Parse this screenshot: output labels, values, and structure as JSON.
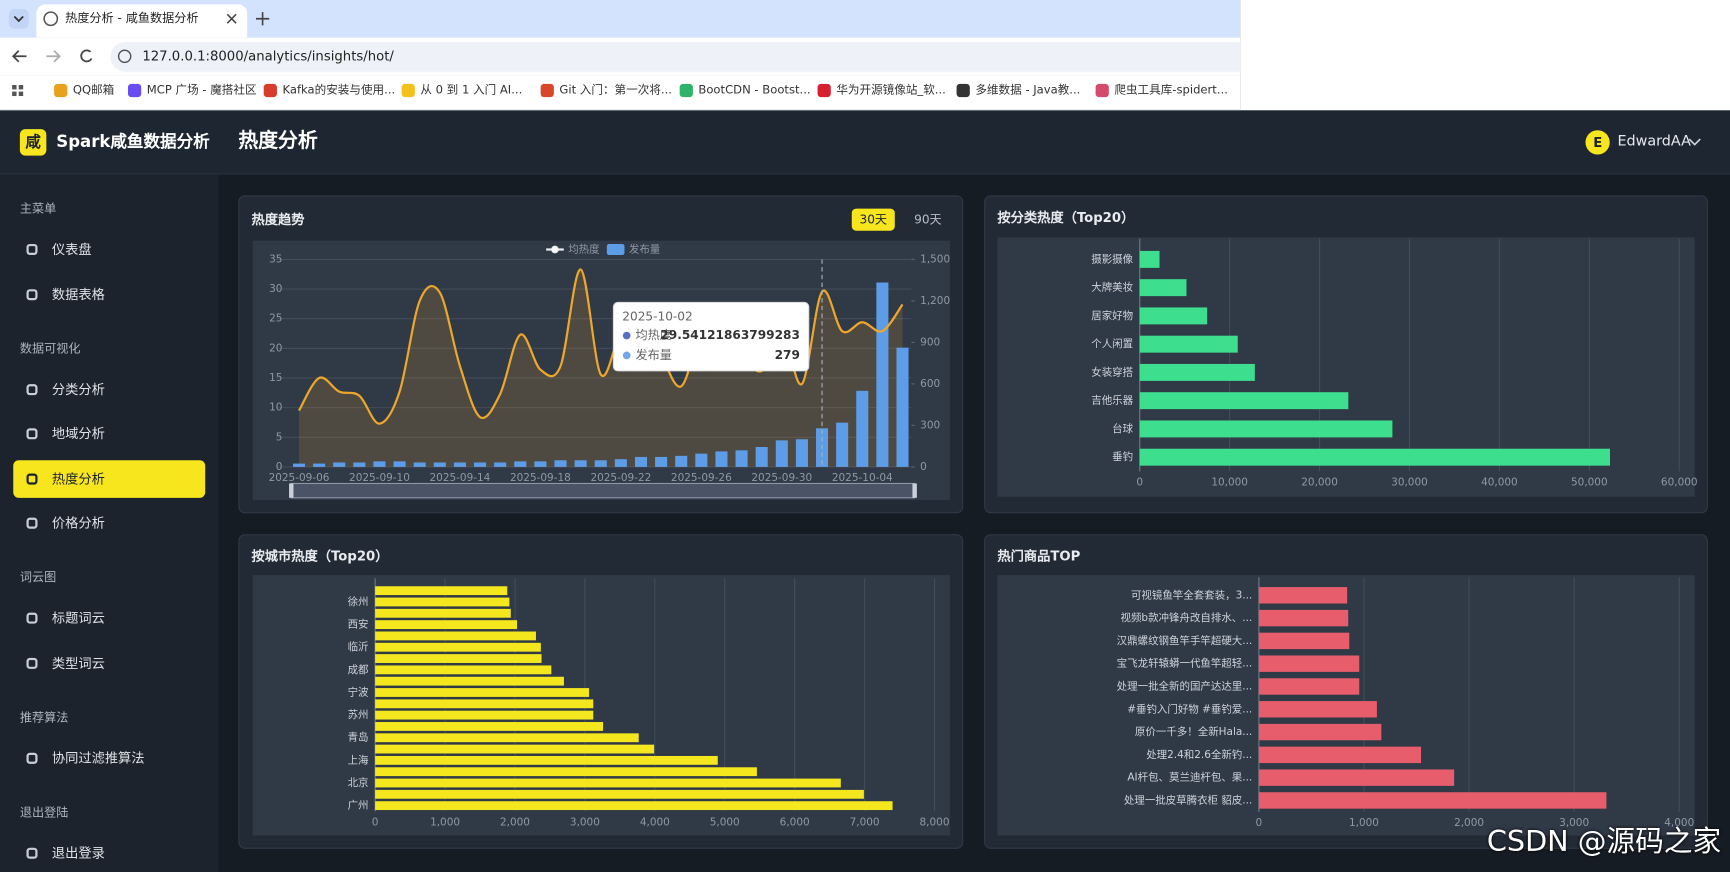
{
  "browser": {
    "tab_title": "热度分析 - 咸鱼数据分析",
    "url": "127.0.0.1:8000/analytics/insights/hot/",
    "bookmarks": [
      "QQ邮箱",
      "MCP 广场 - 魔搭社区",
      "Kafka的安装与使用...",
      "从 0 到 1 入门 AI...",
      "Git 入门：第一次将...",
      "BootCDN - Bootst...",
      "华为开源镜像站_软...",
      "多维数据 - Java教...",
      "爬虫工具库-spidert..."
    ]
  },
  "sidebar": {
    "brand_icon": "咸",
    "brand": "Spark咸鱼数据分析",
    "groups": [
      {
        "title": "主菜单",
        "items": [
          "仪表盘",
          "数据表格"
        ]
      },
      {
        "title": "数据可视化",
        "items": [
          "分类分析",
          "地域分析",
          "热度分析",
          "价格分析"
        ]
      },
      {
        "title": "词云图",
        "items": [
          "标题词云",
          "类型词云"
        ]
      },
      {
        "title": "推荐算法",
        "items": [
          "协同过滤推算法"
        ]
      },
      {
        "title": "退出登陆",
        "items": [
          "退出登录"
        ]
      }
    ]
  },
  "header": {
    "title": "热度分析",
    "user_initial": "E",
    "user": "EdwardAA"
  },
  "chart_data": [
    {
      "type": "combo",
      "title": "热度趋势",
      "range_options": [
        "30天",
        "90天"
      ],
      "categories": [
        "2025-09-06",
        null,
        null,
        null,
        "2025-09-10",
        null,
        null,
        null,
        "2025-09-14",
        null,
        null,
        null,
        "2025-09-18",
        null,
        null,
        null,
        "2025-09-22",
        null,
        null,
        null,
        "2025-09-26",
        null,
        null,
        null,
        "2025-09-30",
        null,
        null,
        null,
        "2025-10-04",
        null,
        null
      ],
      "series": [
        {
          "name": "均热度",
          "type": "line",
          "color": "#eea72a",
          "values": [
            9.5,
            15,
            12.7,
            12,
            7.3,
            12.7,
            28,
            29.4,
            17,
            8.4,
            12.3,
            22.3,
            16.4,
            17,
            33.3,
            15.6,
            22.9,
            26.6,
            19,
            13.6,
            23,
            24.8,
            19.2,
            16.2,
            22.9,
            14,
            29.54121863799283,
            22.9,
            24.4,
            22.9,
            27.4
          ]
        },
        {
          "name": "发布量",
          "type": "bar",
          "axis": "y2",
          "color": "#5d9ce6",
          "values": [
            24,
            24,
            32,
            32,
            40,
            40,
            32,
            32,
            32,
            32,
            32,
            40,
            40,
            48,
            48,
            48,
            56,
            72,
            72,
            80,
            96,
            112,
            120,
            144,
            192,
            200,
            279,
            320,
            550,
            1333,
            862
          ]
        }
      ],
      "ylim": [
        0,
        35
      ],
      "yticks": [
        0,
        5,
        10,
        15,
        20,
        25,
        30,
        35
      ],
      "y2lim": [
        0,
        1500
      ],
      "y2ticks": [
        0,
        300,
        600,
        900,
        {
          "value": 1200,
          "label": "1,200"
        },
        {
          "value": 1500,
          "label": "1,500"
        }
      ],
      "grid": true,
      "tooltip": {
        "title": "2025-10-02"
      }
    },
    {
      "type": "hbar",
      "title": "按分类热度（Top20）",
      "categories": [
        "垂钓",
        "台球",
        "吉他乐器",
        "女装穿搭",
        "个人闲置",
        "居家好物",
        "大牌美妆",
        "摄影摄像"
      ],
      "values": [
        52300,
        28100,
        23200,
        12800,
        10900,
        7500,
        5200,
        2200
      ],
      "color": "#3ddf8e",
      "xlim": [
        0,
        60000
      ],
      "xticks": [
        0,
        {
          "value": 10000,
          "label": "10,000"
        },
        {
          "value": 20000,
          "label": "20,000"
        },
        {
          "value": 30000,
          "label": "30,000"
        },
        {
          "value": 40000,
          "label": "40,000"
        },
        {
          "value": 50000,
          "label": "50,000"
        },
        {
          "value": 60000,
          "label": "60,000"
        }
      ],
      "grid": true
    },
    {
      "type": "hbar",
      "title": "按城市热度（Top20）",
      "categories": [
        "广州",
        null,
        "北京",
        null,
        "上海",
        null,
        "青岛",
        null,
        "苏州",
        null,
        "宁波",
        null,
        "成都",
        null,
        "临沂",
        null,
        "西安",
        null,
        "徐州",
        null
      ],
      "values": [
        7400,
        6990,
        6660,
        5460,
        4900,
        3990,
        3770,
        3260,
        3120,
        3120,
        3060,
        2700,
        2520,
        2380,
        2370,
        2300,
        2030,
        1940,
        1920,
        1890
      ],
      "color": "#f5e71e",
      "xlim": [
        0,
        8000
      ],
      "xticks": [
        0,
        {
          "value": 1000,
          "label": "1,000"
        },
        {
          "value": 2000,
          "label": "2,000"
        },
        {
          "value": 3000,
          "label": "3,000"
        },
        {
          "value": 4000,
          "label": "4,000"
        },
        {
          "value": 5000,
          "label": "5,000"
        },
        {
          "value": 6000,
          "label": "6,000"
        },
        {
          "value": 7000,
          "label": "7,000"
        },
        {
          "value": 8000,
          "label": "8,000"
        }
      ],
      "grid": true
    },
    {
      "type": "hbar",
      "title": "热门商品TOP",
      "categories": [
        "处理一批皮草腾衣柜 貂皮...",
        "AI杆包、莫兰迪杆包、果...",
        "处理2.4和2.6全新钓...",
        "原价一千多！全新Hala...",
        "#垂钓入门好物 #垂钓爱...",
        "处理一批全新的国产达达里...",
        "宝飞龙轩辕蟒一代鱼竿超轻...",
        "汉鼎螺纹钢鱼竿手竿超硬大...",
        "视频b款冲锋舟改自排水、...",
        "可视镜鱼竿全套套装，3..."
      ],
      "values": [
        3307,
        1858,
        1543,
        1165,
        1123,
        955,
        955,
        860,
        850,
        840
      ],
      "color": "#e85d6c",
      "xlim": [
        0,
        4000
      ],
      "xticks": [
        0,
        {
          "value": 1000,
          "label": "1,000"
        },
        {
          "value": 2000,
          "label": "2,000"
        },
        {
          "value": 3000,
          "label": "3,000"
        },
        {
          "value": 4000,
          "label": "4,000"
        }
      ],
      "grid": true
    }
  ],
  "watermark": "CSDN @源码之家"
}
